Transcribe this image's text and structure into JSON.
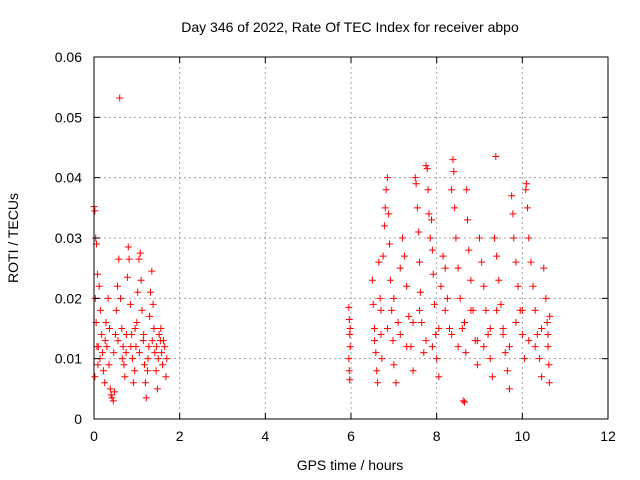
{
  "chart_data": {
    "type": "scatter",
    "title": "Day 346 of 2022, Rate Of TEC Index for receiver abpo",
    "xlabel": "GPS time / hours",
    "ylabel": "ROTI / TECUs",
    "xlim": [
      0,
      12
    ],
    "ylim": [
      0,
      0.06
    ],
    "x_ticks": [
      0,
      2,
      4,
      6,
      8,
      10,
      12
    ],
    "x_tick_labels": [
      "0",
      "2",
      "4",
      "6",
      "8",
      "10",
      "12"
    ],
    "y_ticks": [
      0,
      0.01,
      0.02,
      0.03,
      0.04,
      0.05,
      0.06
    ],
    "y_tick_labels": [
      "0",
      "0.01",
      "0.02",
      "0.03",
      "0.04",
      "0.05",
      "0.06"
    ],
    "grid": true,
    "marker": "plus",
    "colors": {
      "series": "#ff0000",
      "grid": "#a0a0a0",
      "axis": "#000000"
    },
    "series": [
      {
        "points": [
          [
            0.0,
            0.0352
          ],
          [
            0.02,
            0.0345
          ],
          [
            0.04,
            0.03
          ],
          [
            0.06,
            0.029
          ],
          [
            0.08,
            0.024
          ],
          [
            0.03,
            0.02
          ],
          [
            0.05,
            0.016
          ],
          [
            0.07,
            0.012
          ],
          [
            0.09,
            0.009
          ],
          [
            0.02,
            0.007
          ],
          [
            0.12,
            0.022
          ],
          [
            0.15,
            0.018
          ],
          [
            0.18,
            0.014
          ],
          [
            0.2,
            0.011
          ],
          [
            0.22,
            0.008
          ],
          [
            0.25,
            0.006
          ],
          [
            0.28,
            0.016
          ],
          [
            0.3,
            0.012
          ],
          [
            0.33,
            0.02
          ],
          [
            0.35,
            0.009
          ],
          [
            0.38,
            0.005
          ],
          [
            0.4,
            0.004
          ],
          [
            0.42,
            0.0035
          ],
          [
            0.45,
            0.003
          ],
          [
            0.48,
            0.0045
          ],
          [
            0.5,
            0.014
          ],
          [
            0.52,
            0.018
          ],
          [
            0.55,
            0.022
          ],
          [
            0.58,
            0.0265
          ],
          [
            0.6,
            0.0532
          ],
          [
            0.62,
            0.02
          ],
          [
            0.65,
            0.015
          ],
          [
            0.68,
            0.012
          ],
          [
            0.7,
            0.009
          ],
          [
            0.72,
            0.007
          ],
          [
            0.75,
            0.011
          ],
          [
            0.78,
            0.0235
          ],
          [
            0.8,
            0.0285
          ],
          [
            0.82,
            0.0265
          ],
          [
            0.85,
            0.019
          ],
          [
            0.88,
            0.014
          ],
          [
            0.9,
            0.01
          ],
          [
            0.92,
            0.006
          ],
          [
            0.95,
            0.008
          ],
          [
            0.98,
            0.012
          ],
          [
            1.0,
            0.016
          ],
          [
            1.02,
            0.021
          ],
          [
            1.05,
            0.0265
          ],
          [
            1.08,
            0.0275
          ],
          [
            1.1,
            0.023
          ],
          [
            1.12,
            0.018
          ],
          [
            1.15,
            0.013
          ],
          [
            1.18,
            0.009
          ],
          [
            1.2,
            0.006
          ],
          [
            1.22,
            0.0035
          ],
          [
            1.25,
            0.008
          ],
          [
            1.28,
            0.012
          ],
          [
            1.3,
            0.017
          ],
          [
            1.32,
            0.021
          ],
          [
            1.35,
            0.0245
          ],
          [
            1.38,
            0.019
          ],
          [
            1.4,
            0.015
          ],
          [
            1.42,
            0.011
          ],
          [
            1.45,
            0.008
          ],
          [
            1.48,
            0.005
          ],
          [
            1.5,
            0.01
          ],
          [
            1.52,
            0.014
          ],
          [
            1.55,
            0.013
          ],
          [
            1.58,
            0.011
          ],
          [
            1.6,
            0.009
          ],
          [
            1.62,
            0.013
          ],
          [
            1.65,
            0.012
          ],
          [
            1.68,
            0.007
          ],
          [
            1.7,
            0.01
          ],
          [
            0.1,
            0.012
          ],
          [
            0.14,
            0.01
          ],
          [
            0.26,
            0.013
          ],
          [
            0.36,
            0.015
          ],
          [
            0.46,
            0.011
          ],
          [
            0.56,
            0.013
          ],
          [
            0.66,
            0.01
          ],
          [
            0.76,
            0.014
          ],
          [
            0.86,
            0.012
          ],
          [
            0.96,
            0.015
          ],
          [
            1.06,
            0.011
          ],
          [
            1.16,
            0.014
          ],
          [
            1.26,
            0.01
          ],
          [
            1.36,
            0.013
          ],
          [
            1.46,
            0.012
          ],
          [
            1.56,
            0.015
          ],
          [
            5.95,
            0.0185
          ],
          [
            5.96,
            0.0165
          ],
          [
            5.97,
            0.014
          ],
          [
            5.98,
            0.012
          ],
          [
            5.95,
            0.01
          ],
          [
            5.96,
            0.008
          ],
          [
            5.97,
            0.0065
          ],
          [
            5.98,
            0.015
          ],
          [
            6.5,
            0.023
          ],
          [
            6.52,
            0.019
          ],
          [
            6.55,
            0.015
          ],
          [
            6.58,
            0.011
          ],
          [
            6.6,
            0.008
          ],
          [
            6.62,
            0.006
          ],
          [
            6.65,
            0.026
          ],
          [
            6.68,
            0.02
          ],
          [
            6.7,
            0.014
          ],
          [
            6.72,
            0.01
          ],
          [
            6.75,
            0.027
          ],
          [
            6.78,
            0.032
          ],
          [
            6.8,
            0.035
          ],
          [
            6.82,
            0.038
          ],
          [
            6.85,
            0.04
          ],
          [
            6.88,
            0.034
          ],
          [
            6.9,
            0.029
          ],
          [
            6.92,
            0.023
          ],
          [
            6.95,
            0.018
          ],
          [
            6.98,
            0.013
          ],
          [
            7.0,
            0.009
          ],
          [
            7.05,
            0.006
          ],
          [
            7.1,
            0.016
          ],
          [
            7.15,
            0.025
          ],
          [
            7.2,
            0.03
          ],
          [
            7.25,
            0.027
          ],
          [
            7.3,
            0.022
          ],
          [
            7.35,
            0.017
          ],
          [
            7.4,
            0.012
          ],
          [
            7.45,
            0.008
          ],
          [
            7.5,
            0.04
          ],
          [
            7.52,
            0.039
          ],
          [
            7.55,
            0.035
          ],
          [
            7.58,
            0.031
          ],
          [
            7.6,
            0.026
          ],
          [
            7.62,
            0.021
          ],
          [
            7.65,
            0.016
          ],
          [
            7.7,
            0.011
          ],
          [
            7.75,
            0.042
          ],
          [
            7.78,
            0.0415
          ],
          [
            7.8,
            0.038
          ],
          [
            7.82,
            0.034
          ],
          [
            7.85,
            0.03
          ],
          [
            7.88,
            0.033
          ],
          [
            7.9,
            0.028
          ],
          [
            7.92,
            0.024
          ],
          [
            7.95,
            0.019
          ],
          [
            7.98,
            0.014
          ],
          [
            8.0,
            0.01
          ],
          [
            8.05,
            0.007
          ],
          [
            8.1,
            0.022
          ],
          [
            8.15,
            0.027
          ],
          [
            8.2,
            0.025
          ],
          [
            8.25,
            0.02
          ],
          [
            8.3,
            0.015
          ],
          [
            8.35,
            0.038
          ],
          [
            8.38,
            0.043
          ],
          [
            8.4,
            0.041
          ],
          [
            8.42,
            0.035
          ],
          [
            8.45,
            0.03
          ],
          [
            8.5,
            0.025
          ],
          [
            8.55,
            0.02
          ],
          [
            8.6,
            0.015
          ],
          [
            8.62,
            0.003
          ],
          [
            8.65,
            0.0028
          ],
          [
            8.68,
            0.011
          ],
          [
            8.7,
            0.038
          ],
          [
            8.72,
            0.033
          ],
          [
            8.75,
            0.028
          ],
          [
            8.8,
            0.023
          ],
          [
            8.85,
            0.018
          ],
          [
            8.9,
            0.013
          ],
          [
            8.95,
            0.009
          ],
          [
            9.0,
            0.03
          ],
          [
            9.05,
            0.026
          ],
          [
            9.1,
            0.022
          ],
          [
            9.15,
            0.018
          ],
          [
            9.2,
            0.014
          ],
          [
            9.25,
            0.01
          ],
          [
            9.3,
            0.007
          ],
          [
            9.35,
            0.03
          ],
          [
            9.38,
            0.0435
          ],
          [
            9.4,
            0.027
          ],
          [
            9.45,
            0.023
          ],
          [
            9.5,
            0.019
          ],
          [
            9.55,
            0.015
          ],
          [
            9.6,
            0.011
          ],
          [
            9.65,
            0.008
          ],
          [
            9.7,
            0.005
          ],
          [
            9.75,
            0.037
          ],
          [
            9.78,
            0.034
          ],
          [
            9.8,
            0.03
          ],
          [
            9.85,
            0.026
          ],
          [
            9.9,
            0.022
          ],
          [
            9.95,
            0.018
          ],
          [
            10.0,
            0.014
          ],
          [
            10.05,
            0.01
          ],
          [
            10.08,
            0.038
          ],
          [
            10.1,
            0.039
          ],
          [
            10.12,
            0.035
          ],
          [
            10.15,
            0.03
          ],
          [
            10.2,
            0.026
          ],
          [
            10.25,
            0.022
          ],
          [
            10.3,
            0.018
          ],
          [
            10.35,
            0.014
          ],
          [
            10.4,
            0.01
          ],
          [
            10.45,
            0.007
          ],
          [
            10.5,
            0.025
          ],
          [
            10.55,
            0.02
          ],
          [
            10.58,
            0.016
          ],
          [
            10.6,
            0.012
          ],
          [
            10.62,
            0.009
          ],
          [
            10.63,
            0.006
          ],
          [
            10.64,
            0.017
          ],
          [
            6.55,
            0.013
          ],
          [
            6.85,
            0.015
          ],
          [
            7.15,
            0.014
          ],
          [
            7.45,
            0.016
          ],
          [
            7.75,
            0.013
          ],
          [
            8.05,
            0.015
          ],
          [
            8.35,
            0.014
          ],
          [
            8.65,
            0.016
          ],
          [
            8.95,
            0.013
          ],
          [
            9.25,
            0.015
          ],
          [
            9.55,
            0.014
          ],
          [
            9.85,
            0.016
          ],
          [
            10.15,
            0.013
          ],
          [
            10.45,
            0.015
          ],
          [
            6.7,
            0.018
          ],
          [
            7.0,
            0.02
          ],
          [
            7.3,
            0.012
          ],
          [
            7.6,
            0.018
          ],
          [
            7.9,
            0.012
          ],
          [
            8.2,
            0.018
          ],
          [
            8.5,
            0.012
          ],
          [
            8.8,
            0.018
          ],
          [
            9.1,
            0.012
          ],
          [
            9.4,
            0.018
          ],
          [
            9.7,
            0.012
          ],
          [
            10.0,
            0.018
          ],
          [
            10.3,
            0.012
          ],
          [
            10.6,
            0.014
          ]
        ]
      }
    ]
  }
}
